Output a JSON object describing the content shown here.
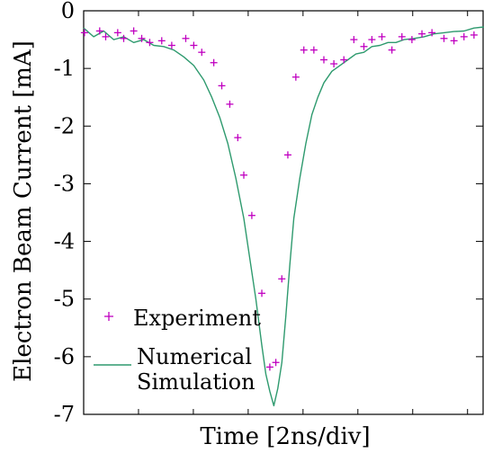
{
  "chart_data": {
    "type": "line",
    "title": "",
    "xlabel": "Time [2ns/div]",
    "ylabel": "Electron Beam Current [mA]",
    "xlim": [
      0,
      10
    ],
    "ylim": [
      -7,
      0
    ],
    "yticks": [
      0,
      -1,
      -2,
      -3,
      -4,
      -5,
      -6,
      -7
    ],
    "grid": false,
    "legend_position": "bottom-left",
    "series": [
      {
        "name": "Experiment",
        "kind": "scatter",
        "marker": "plus",
        "color": "#c000c0",
        "x": [
          0.02,
          0.4,
          0.55,
          0.85,
          1.0,
          1.25,
          1.45,
          1.65,
          1.95,
          2.2,
          2.55,
          2.75,
          2.95,
          3.25,
          3.45,
          3.65,
          3.85,
          4.0,
          4.2,
          4.45,
          4.65,
          4.8,
          4.95,
          5.1,
          5.3,
          5.5,
          5.75,
          6.0,
          6.25,
          6.5,
          6.75,
          7.0,
          7.2,
          7.45,
          7.7,
          7.95,
          8.2,
          8.45,
          8.7,
          9.0,
          9.25,
          9.5,
          9.75
        ],
        "y": [
          -0.38,
          -0.35,
          -0.45,
          -0.38,
          -0.48,
          -0.35,
          -0.48,
          -0.55,
          -0.52,
          -0.6,
          -0.48,
          -0.6,
          -0.72,
          -0.9,
          -1.3,
          -1.62,
          -2.2,
          -2.85,
          -3.55,
          -4.9,
          -6.18,
          -6.1,
          -4.65,
          -2.5,
          -1.15,
          -0.68,
          -0.68,
          -0.85,
          -0.92,
          -0.85,
          -0.5,
          -0.62,
          -0.5,
          -0.45,
          -0.68,
          -0.45,
          -0.5,
          -0.4,
          -0.38,
          -0.48,
          -0.52,
          -0.45,
          -0.42
        ],
        "values_note_ok": true
      },
      {
        "name": "Numerical Simulation",
        "kind": "line",
        "color": "#2e9a6e",
        "x": [
          0,
          0.25,
          0.5,
          0.75,
          1.0,
          1.25,
          1.5,
          1.75,
          2.0,
          2.25,
          2.5,
          2.75,
          3.0,
          3.2,
          3.4,
          3.6,
          3.8,
          4.0,
          4.15,
          4.3,
          4.45,
          4.55,
          4.65,
          4.75,
          4.85,
          4.95,
          5.05,
          5.15,
          5.25,
          5.4,
          5.55,
          5.7,
          5.85,
          6.0,
          6.2,
          6.4,
          6.6,
          6.8,
          7.0,
          7.2,
          7.4,
          7.6,
          7.8,
          8.0,
          8.25,
          8.5,
          8.75,
          9.0,
          9.25,
          9.5,
          9.75,
          10.0
        ],
        "y": [
          -0.3,
          -0.45,
          -0.35,
          -0.5,
          -0.45,
          -0.55,
          -0.5,
          -0.6,
          -0.62,
          -0.68,
          -0.8,
          -0.95,
          -1.2,
          -1.5,
          -1.85,
          -2.3,
          -2.9,
          -3.6,
          -4.3,
          -5.0,
          -5.8,
          -6.3,
          -6.6,
          -6.85,
          -6.55,
          -6.1,
          -5.3,
          -4.4,
          -3.6,
          -2.9,
          -2.3,
          -1.8,
          -1.5,
          -1.25,
          -1.05,
          -0.95,
          -0.85,
          -0.75,
          -0.72,
          -0.62,
          -0.6,
          -0.55,
          -0.55,
          -0.5,
          -0.48,
          -0.45,
          -0.4,
          -0.38,
          -0.36,
          -0.35,
          -0.3,
          -0.28
        ]
      }
    ]
  }
}
